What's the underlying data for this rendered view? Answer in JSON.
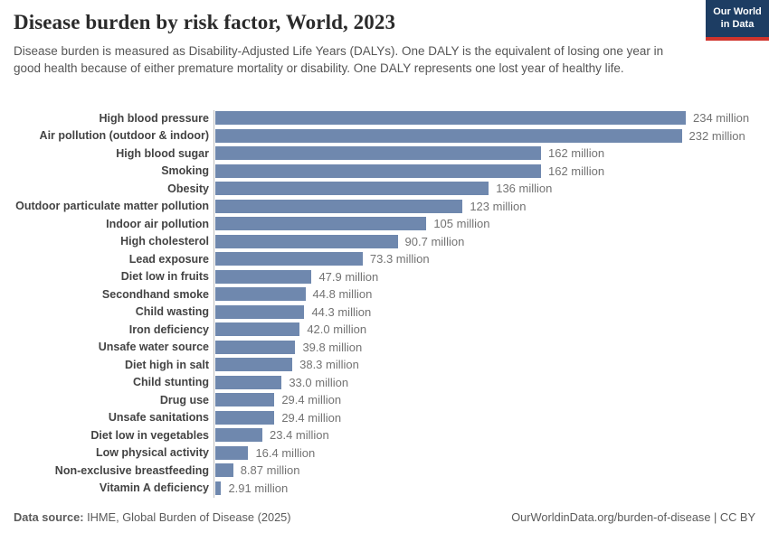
{
  "header": {
    "title": "Disease burden by risk factor, World, 2023",
    "subtitle": "Disease burden is measured as Disability-Adjusted Life Years (DALYs). One DALY is the equivalent of losing one year in good health because of either premature mortality or disability. One DALY represents one lost year of healthy life.",
    "logo": {
      "line1": "Our World",
      "line2": "in Data"
    }
  },
  "chart_data": {
    "type": "bar",
    "orientation": "horizontal",
    "title": "Disease burden by risk factor, World, 2023",
    "xlabel": "",
    "ylabel": "",
    "xlim": [
      0,
      234
    ],
    "grid": false,
    "legend": "none",
    "unit": "million",
    "bar_color": "#6f88ae",
    "categories": [
      "High blood pressure",
      "Air pollution (outdoor & indoor)",
      "High blood sugar",
      "Smoking",
      "Obesity",
      "Outdoor particulate matter pollution",
      "Indoor air pollution",
      "High cholesterol",
      "Lead exposure",
      "Diet low in fruits",
      "Secondhand smoke",
      "Child wasting",
      "Iron deficiency",
      "Unsafe water source",
      "Diet high in salt",
      "Child stunting",
      "Drug use",
      "Unsafe sanitations",
      "Diet low in vegetables",
      "Low physical activity",
      "Non-exclusive breastfeeding",
      "Vitamin A deficiency"
    ],
    "values": [
      234,
      232,
      162,
      162,
      136,
      123,
      105,
      90.7,
      73.3,
      47.9,
      44.8,
      44.3,
      42.0,
      39.8,
      38.3,
      33.0,
      29.4,
      29.4,
      23.4,
      16.4,
      8.87,
      2.91
    ],
    "value_labels": [
      "234 million",
      "232 million",
      "162 million",
      "162 million",
      "136 million",
      "123 million",
      "105 million",
      "90.7 million",
      "73.3 million",
      "47.9 million",
      "44.8 million",
      "44.3 million",
      "42.0 million",
      "39.8 million",
      "38.3 million",
      "33.0 million",
      "29.4 million",
      "29.4 million",
      "23.4 million",
      "16.4 million",
      "8.87 million",
      "2.91 million"
    ]
  },
  "footer": {
    "datasource_label": "Data source:",
    "datasource_text": " IHME, Global Burden of Disease (2025)",
    "link": "OurWorldinData.org/burden-of-disease | CC BY"
  },
  "colors": {
    "bar": "#6f88ae",
    "logo_bg": "#1d3d63",
    "logo_strip": "#d0342c",
    "title_text": "#2b2b2b",
    "subtitle_text": "#555555",
    "category_text": "#434343",
    "value_text": "#737373",
    "axis_line": "#bdbdbd"
  }
}
